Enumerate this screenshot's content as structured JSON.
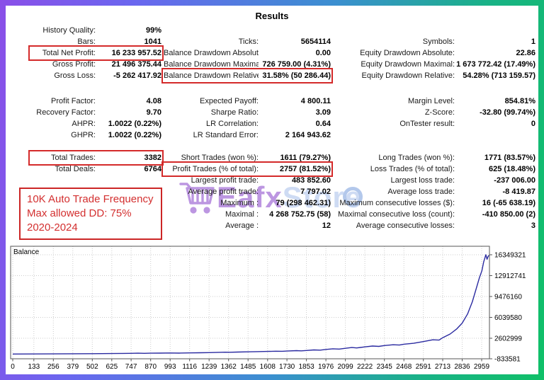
{
  "title": "Results",
  "colors": {
    "frame_gradient": [
      "#8a4fe8",
      "#6a67ef",
      "#3b8fd0",
      "#10c068"
    ],
    "highlight_box_red": "#d42a2a",
    "annotation_red": "#d32f2f",
    "watermark_purple": "#7b2fc4",
    "watermark_blue": "#9fb9e8",
    "chart_line_blue": "#2a2aa0"
  },
  "stats": {
    "columns": [
      {
        "name": "left",
        "sections": [
          [
            {
              "label": "History Quality:",
              "value": "99%"
            },
            {
              "label": "Bars:",
              "value": "1041"
            },
            {
              "label": "Total Net Profit:",
              "value": "16 233 957.52",
              "boxed": true
            },
            {
              "label": "Gross Profit:",
              "value": "21 496 375.44"
            },
            {
              "label": "Gross Loss:",
              "value": "-5 262 417.92"
            }
          ],
          [
            {
              "label": "Profit Factor:",
              "value": "4.08"
            },
            {
              "label": "Recovery Factor:",
              "value": "9.70"
            },
            {
              "label": "AHPR:",
              "value": "1.0022 (0.22%)"
            },
            {
              "label": "GHPR:",
              "value": "1.0022 (0.22%)"
            }
          ],
          [
            {
              "label": "Total Trades:",
              "value": "3382",
              "boxed": true
            },
            {
              "label": "Total Deals:",
              "value": "6764"
            }
          ]
        ]
      },
      {
        "name": "middle",
        "sections": [
          [
            {
              "label": "",
              "value": ""
            },
            {
              "label": "Ticks:",
              "value": "5654114"
            },
            {
              "label": "Balance Drawdown Absolute:",
              "value": "0.00"
            },
            {
              "label": "Balance Drawdown Maximal:",
              "value": "726 759.00 (4.31%)"
            },
            {
              "label": "Balance Drawdown Relative:",
              "value": "31.58% (50 286.44)",
              "boxed": true
            }
          ],
          [
            {
              "label": "Expected Payoff:",
              "value": "4 800.11"
            },
            {
              "label": "Sharpe Ratio:",
              "value": "3.09"
            },
            {
              "label": "LR Correlation:",
              "value": "0.64"
            },
            {
              "label": "LR Standard Error:",
              "value": "2 164 943.62"
            }
          ],
          [
            {
              "label": "Short Trades (won %):",
              "value": "1611 (79.27%)"
            },
            {
              "label": "Profit Trades (% of total):",
              "value": "2757 (81.52%)",
              "boxed": true
            },
            {
              "label": "Largest profit trade:",
              "value": "483 852.60"
            },
            {
              "label": "Average profit trade:",
              "value": "7 797.02"
            },
            {
              "label": "Maximum :",
              "value": "79 (298 462.31)"
            },
            {
              "label": "Maximal :",
              "value": "4 268 752.75 (58)"
            },
            {
              "label": "Average :",
              "value": "12"
            }
          ]
        ]
      },
      {
        "name": "right",
        "sections": [
          [
            {
              "label": "",
              "value": ""
            },
            {
              "label": "Symbols:",
              "value": "1"
            },
            {
              "label": "Equity Drawdown Absolute:",
              "value": "22.86"
            },
            {
              "label": "Equity Drawdown Maximal:",
              "value": "1 673 772.42 (17.49%)"
            },
            {
              "label": "Equity Drawdown Relative:",
              "value": "54.28% (713 159.57)"
            }
          ],
          [
            {
              "label": "Margin Level:",
              "value": "854.81%"
            },
            {
              "label": "Z-Score:",
              "value": "-32.80 (99.74%)"
            },
            {
              "label": "OnTester result:",
              "value": "0"
            }
          ],
          [
            {
              "label": "Long Trades (won %):",
              "value": "1771 (83.57%)"
            },
            {
              "label": "Loss Trades (% of total):",
              "value": "625 (18.48%)"
            },
            {
              "label": "Largest loss trade:",
              "value": "-237 006.00"
            },
            {
              "label": "Average loss trade:",
              "value": "-8 419.87"
            },
            {
              "label": "Maximum consecutive losses ($):",
              "value": "16 (-65 638.19)"
            },
            {
              "label": "Maximal consecutive loss (count):",
              "value": "-410 850.00 (2)"
            },
            {
              "label": "Average consecutive losses:",
              "value": "3"
            }
          ]
        ]
      }
    ]
  },
  "annotation": {
    "lines": [
      "10K Auto Trade Frequency",
      "Max allowed DD: 75%",
      "2020-2024"
    ]
  },
  "watermark": {
    "icon": "shopping-cart-icon",
    "brand_primary": "Eafx",
    "brand_secondary": "Store"
  },
  "chart_data": {
    "type": "line",
    "title": "Balance",
    "xlabel": "",
    "ylabel": "",
    "grid": true,
    "legend_position": "top-left",
    "line_color": "#2a2aa0",
    "xlim": [
      0,
      3008
    ],
    "ylim": [
      -775000,
      17750000
    ],
    "x_ticks": [
      0,
      133,
      256,
      379,
      502,
      625,
      747,
      870,
      993,
      1116,
      1239,
      1362,
      1485,
      1608,
      1730,
      1853,
      1976,
      2099,
      2222,
      2345,
      2468,
      2591,
      2713,
      2836,
      2959
    ],
    "y_ticks": [
      {
        "value": 16349321,
        "label": "16349321"
      },
      {
        "value": 12912741,
        "label": "12912741"
      },
      {
        "value": 9476160,
        "label": "9476160"
      },
      {
        "value": 6039580,
        "label": "6039580"
      },
      {
        "value": 2602999,
        "label": "2602999"
      },
      {
        "value": -833581,
        "label": "-833581"
      }
    ],
    "series": [
      {
        "name": "Balance",
        "points": [
          [
            0,
            10000
          ],
          [
            133,
            20000
          ],
          [
            256,
            33000
          ],
          [
            379,
            48000
          ],
          [
            502,
            64000
          ],
          [
            625,
            88000
          ],
          [
            700,
            106000
          ],
          [
            747,
            118000
          ],
          [
            790,
            146000
          ],
          [
            830,
            126000
          ],
          [
            870,
            141000
          ],
          [
            930,
            158000
          ],
          [
            993,
            176000
          ],
          [
            1050,
            162000
          ],
          [
            1116,
            196000
          ],
          [
            1180,
            216000
          ],
          [
            1239,
            242000
          ],
          [
            1300,
            282000
          ],
          [
            1340,
            312000
          ],
          [
            1370,
            296000
          ],
          [
            1420,
            330000
          ],
          [
            1485,
            362000
          ],
          [
            1540,
            400000
          ],
          [
            1608,
            440000
          ],
          [
            1660,
            472000
          ],
          [
            1700,
            455000
          ],
          [
            1730,
            500000
          ],
          [
            1790,
            562000
          ],
          [
            1820,
            532000
          ],
          [
            1853,
            592000
          ],
          [
            1900,
            682000
          ],
          [
            1940,
            642000
          ],
          [
            1976,
            762000
          ],
          [
            2020,
            872000
          ],
          [
            2060,
            822000
          ],
          [
            2099,
            952000
          ],
          [
            2140,
            1082000
          ],
          [
            2170,
            1012000
          ],
          [
            2222,
            1182000
          ],
          [
            2270,
            1322000
          ],
          [
            2310,
            1262000
          ],
          [
            2345,
            1402000
          ],
          [
            2400,
            1532000
          ],
          [
            2440,
            1482000
          ],
          [
            2468,
            1622000
          ],
          [
            2530,
            1782000
          ],
          [
            2591,
            2052000
          ],
          [
            2650,
            2352000
          ],
          [
            2690,
            2302000
          ],
          [
            2713,
            2702000
          ],
          [
            2760,
            3302000
          ],
          [
            2800,
            4102000
          ],
          [
            2836,
            5102000
          ],
          [
            2870,
            6602000
          ],
          [
            2900,
            8602000
          ],
          [
            2925,
            10802000
          ],
          [
            2945,
            12602000
          ],
          [
            2960,
            13702000
          ],
          [
            2972,
            15202000
          ],
          [
            2985,
            16349321
          ],
          [
            2993,
            15602000
          ],
          [
            3000,
            16102000
          ],
          [
            3005,
            16249321
          ]
        ]
      }
    ]
  }
}
